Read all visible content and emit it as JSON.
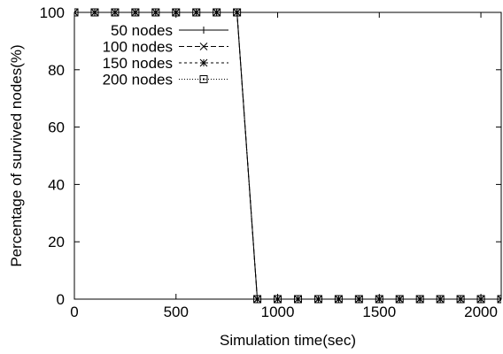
{
  "chart_data": {
    "type": "line",
    "title": "",
    "xlabel": "Simulation time(sec)",
    "ylabel": "Percentage of survived nodes(%)",
    "xlim": [
      0,
      2100
    ],
    "ylim": [
      0,
      100
    ],
    "x_ticks": [
      0,
      500,
      1000,
      1500,
      2000
    ],
    "x_tick_labels": [
      "0",
      "500",
      "1000",
      "1500",
      "2000"
    ],
    "y_ticks": [
      0,
      20,
      40,
      60,
      80,
      100
    ],
    "y_tick_labels": [
      "0",
      "20",
      "40",
      "60",
      "80",
      "100"
    ],
    "grid": false,
    "legend_position": "top-left",
    "x": [
      0,
      100,
      200,
      300,
      400,
      500,
      600,
      700,
      800,
      900,
      1000,
      1100,
      1200,
      1300,
      1400,
      1500,
      1600,
      1700,
      1800,
      1900,
      2000,
      2100
    ],
    "series": [
      {
        "name": "50 nodes",
        "line_style": "solid",
        "marker": "plus",
        "values": [
          100,
          100,
          100,
          100,
          100,
          100,
          100,
          100,
          100,
          0,
          0,
          0,
          0,
          0,
          0,
          0,
          0,
          0,
          0,
          0,
          0,
          0
        ]
      },
      {
        "name": "100 nodes",
        "line_style": "dashed",
        "marker": "cross",
        "values": [
          100,
          100,
          100,
          100,
          100,
          100,
          100,
          100,
          100,
          0,
          0,
          0,
          0,
          0,
          0,
          0,
          0,
          0,
          0,
          0,
          0,
          0
        ]
      },
      {
        "name": "150 nodes",
        "line_style": "short-dashed",
        "marker": "star",
        "values": [
          100,
          100,
          100,
          100,
          100,
          100,
          100,
          100,
          100,
          0,
          0,
          0,
          0,
          0,
          0,
          0,
          0,
          0,
          0,
          0,
          0,
          0
        ]
      },
      {
        "name": "200 nodes",
        "line_style": "dotted",
        "marker": "square",
        "values": [
          100,
          100,
          100,
          100,
          100,
          100,
          100,
          100,
          100,
          0,
          0,
          0,
          0,
          0,
          0,
          0,
          0,
          0,
          0,
          0,
          0,
          0
        ]
      }
    ]
  }
}
